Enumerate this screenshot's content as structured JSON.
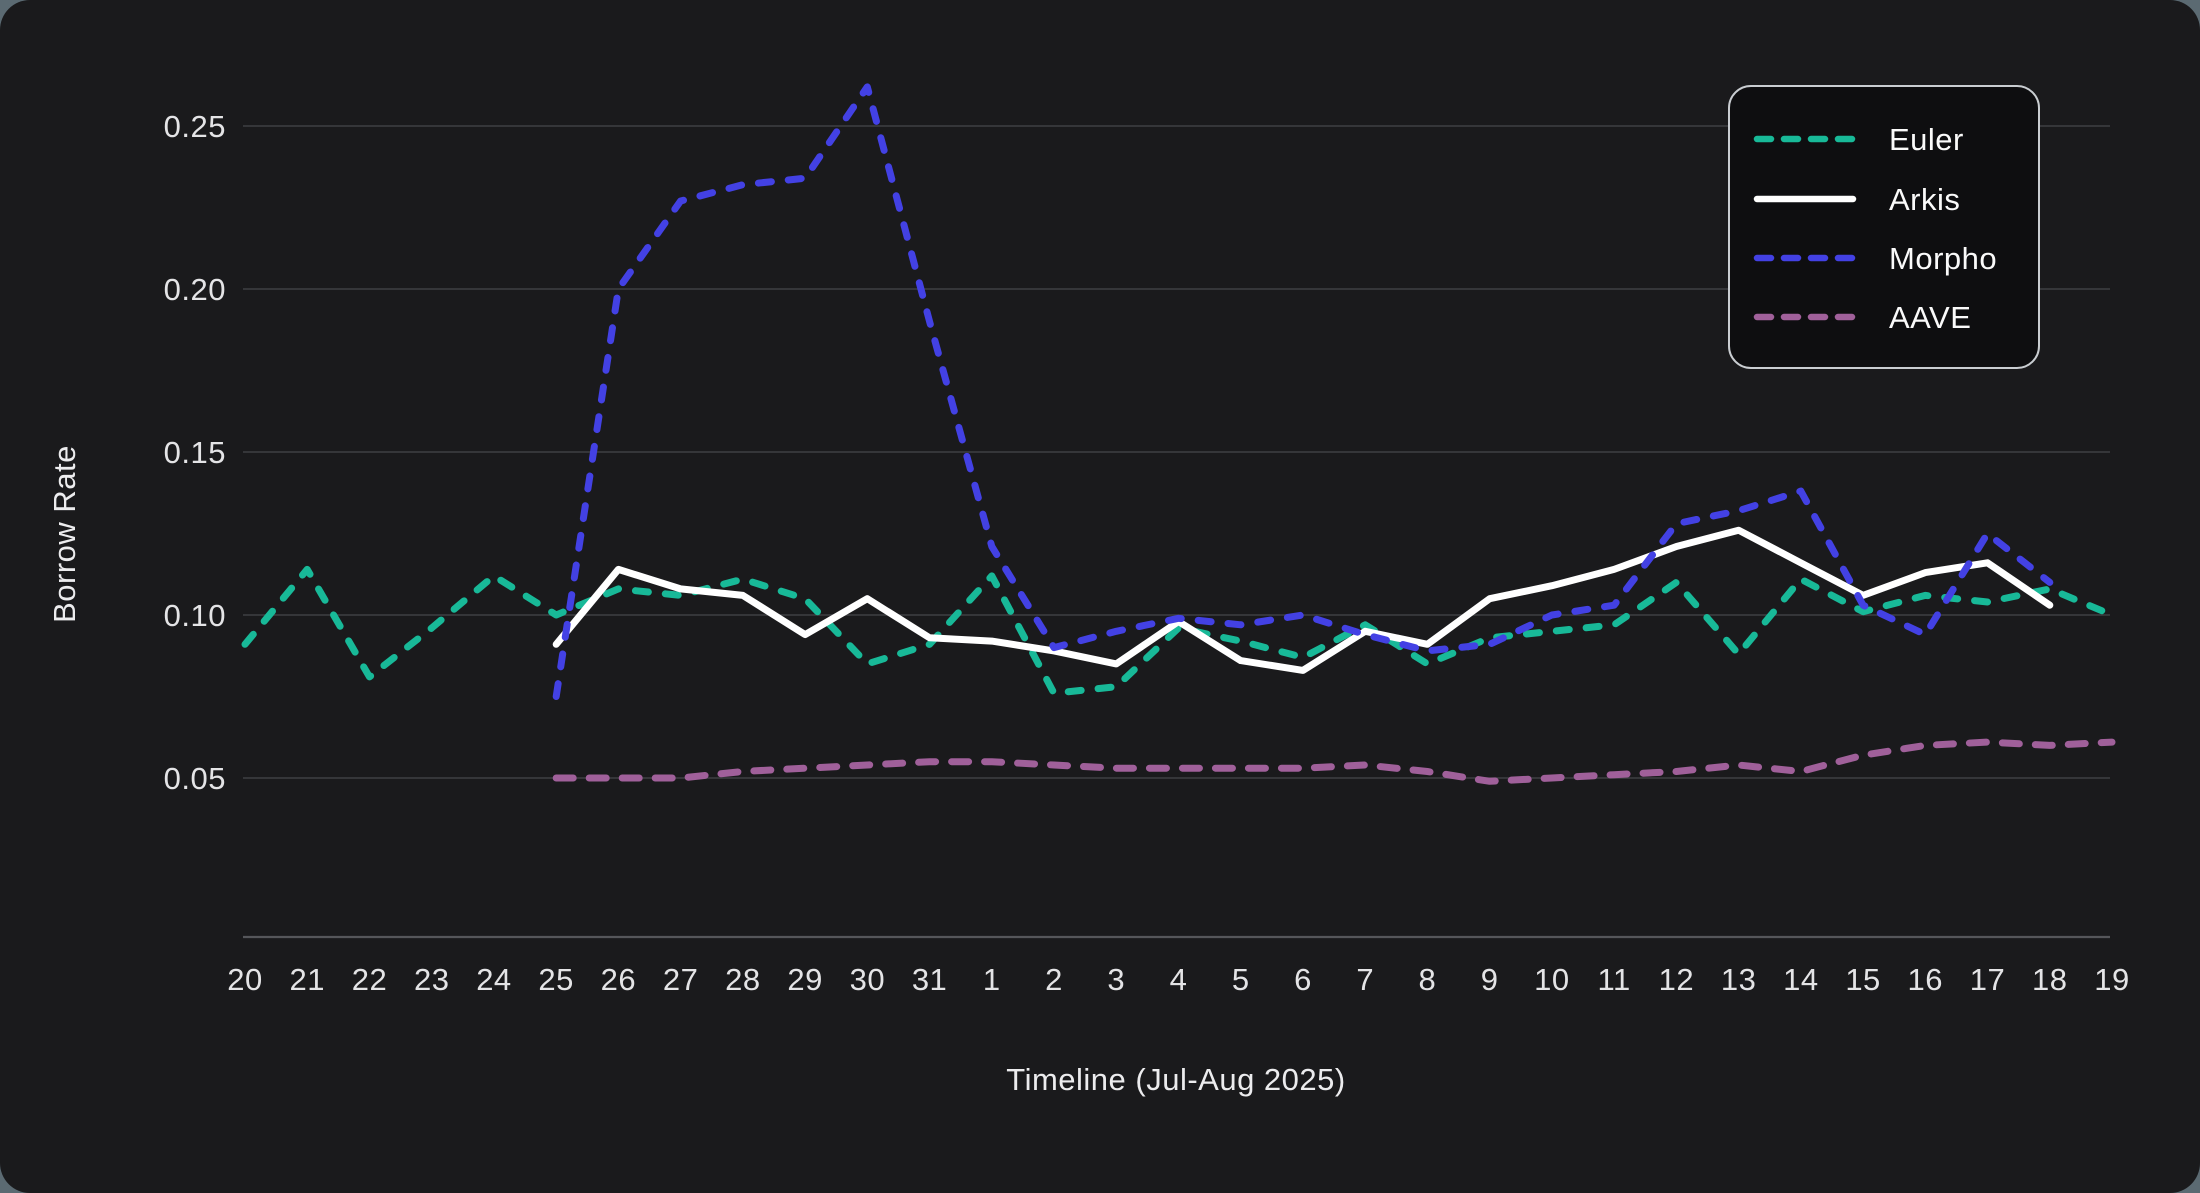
{
  "page": {
    "outer_background": "#5B6A72",
    "card_background": "#1A1A1C",
    "gridline_color": "#3E3F43",
    "axisline_color": "#55565A",
    "tick_text_color": "#E4E4E6"
  },
  "legend": {
    "background": "#0E0E10",
    "border_color": "#C9CDD1"
  },
  "chart_data": {
    "type": "line",
    "title": "",
    "xlabel": "Timeline (Jul-Aug 2025)",
    "ylabel": "Borrow Rate",
    "grid": "horizontal",
    "legend_position": "top-right",
    "ylim": [
      0,
      0.28
    ],
    "yticks": [
      {
        "value": 0.05,
        "label": "0.05"
      },
      {
        "value": 0.1,
        "label": "0.10"
      },
      {
        "value": 0.15,
        "label": "0.15"
      },
      {
        "value": 0.2,
        "label": "0.20"
      },
      {
        "value": 0.25,
        "label": "0.25"
      }
    ],
    "x_labels": [
      "20",
      "21",
      "22",
      "23",
      "24",
      "25",
      "26",
      "27",
      "28",
      "29",
      "30",
      "31",
      "1",
      "2",
      "3",
      "4",
      "5",
      "6",
      "7",
      "8",
      "9",
      "10",
      "11",
      "12",
      "13",
      "14",
      "15",
      "16",
      "17",
      "18",
      "19"
    ],
    "series": [
      {
        "name": "Euler",
        "color": "#18B998",
        "line_style": "dashed",
        "values": [
          0.091,
          0.114,
          0.081,
          0.096,
          0.112,
          0.1,
          0.108,
          0.106,
          0.111,
          0.105,
          0.085,
          0.091,
          0.112,
          0.076,
          0.078,
          0.096,
          0.092,
          0.087,
          0.097,
          0.085,
          0.093,
          0.095,
          0.097,
          0.11,
          0.088,
          0.111,
          0.101,
          0.106,
          0.104,
          0.108,
          0.1
        ]
      },
      {
        "name": "Arkis",
        "color": "#FFFFFF",
        "line_style": "solid",
        "values": [
          null,
          null,
          null,
          null,
          null,
          0.091,
          0.114,
          0.108,
          0.106,
          0.094,
          0.105,
          0.093,
          0.092,
          0.089,
          0.085,
          0.098,
          0.086,
          0.083,
          0.095,
          0.091,
          0.105,
          0.109,
          0.114,
          0.121,
          0.126,
          0.116,
          0.106,
          0.113,
          0.116,
          0.103,
          null
        ]
      },
      {
        "name": "Morpho",
        "color": "#4341E4",
        "line_style": "dashed",
        "values": [
          null,
          null,
          null,
          null,
          null,
          0.075,
          0.2,
          0.227,
          0.232,
          0.234,
          0.262,
          0.19,
          0.121,
          0.09,
          0.095,
          0.099,
          0.097,
          0.1,
          0.094,
          0.089,
          0.091,
          0.1,
          0.103,
          0.128,
          0.132,
          0.138,
          0.103,
          0.094,
          0.125,
          0.11,
          null
        ]
      },
      {
        "name": "AAVE",
        "color": "#A0609A",
        "line_style": "dashed-long",
        "values": [
          null,
          null,
          null,
          null,
          null,
          0.05,
          0.05,
          0.05,
          0.052,
          0.053,
          0.054,
          0.055,
          0.055,
          0.054,
          0.053,
          0.053,
          0.053,
          0.053,
          0.054,
          0.052,
          0.049,
          0.05,
          0.051,
          0.052,
          0.054,
          0.052,
          0.057,
          0.06,
          0.061,
          0.06,
          0.061
        ]
      }
    ]
  }
}
